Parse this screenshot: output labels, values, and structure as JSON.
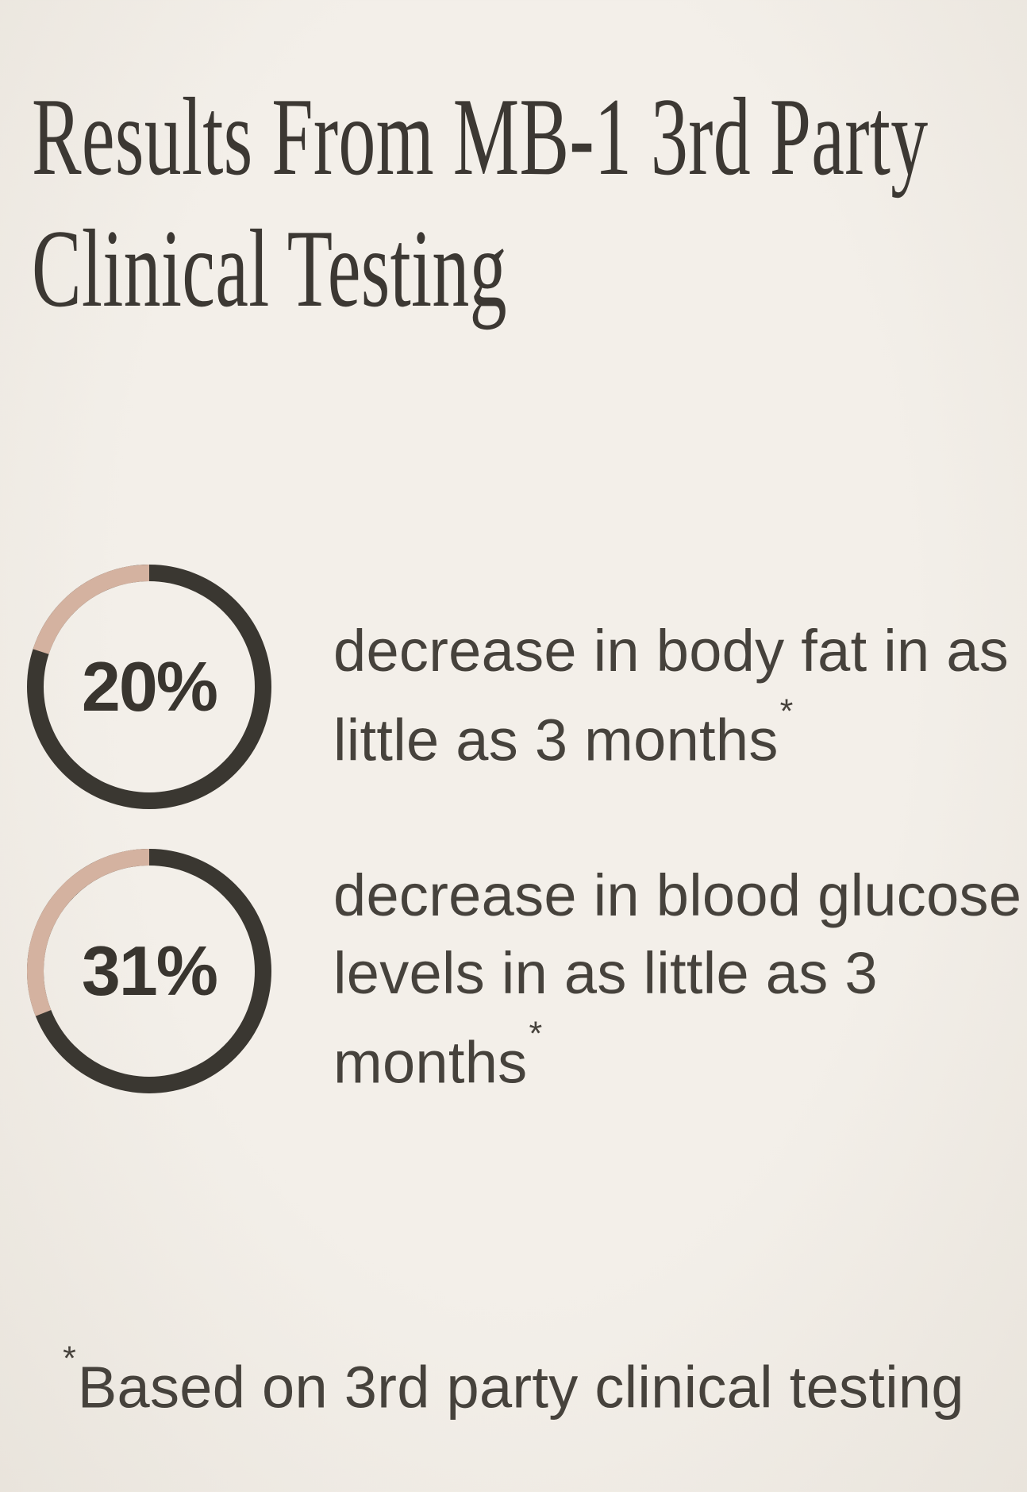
{
  "title": {
    "lines": [
      "Results From MB-1 3rd Party",
      "Clinical Testing"
    ]
  },
  "stats": [
    {
      "percent_label": "20%",
      "percent": 20,
      "description_lines": [
        "decrease in body fat in as",
        "little as 3 months"
      ],
      "footnote_marker": "*"
    },
    {
      "percent_label": "31%",
      "percent": 31,
      "description_lines": [
        "decrease in blood glucose",
        "levels in as little as 3",
        "months"
      ],
      "footnote_marker": "*"
    }
  ],
  "footnote": {
    "marker": "*",
    "text": "Based on 3rd party clinical testing"
  },
  "colors": {
    "background_center": "#f3efe9",
    "background_edge": "#e9e4dc",
    "ring_dark": "#3a3731",
    "ring_accent": "#d4b2a0",
    "title_color": "#3c3833",
    "text_color": "#46423c",
    "percent_color": "#39352f"
  },
  "chart_data": [
    {
      "type": "pie",
      "subtype": "donut-progress",
      "center_label": "20%",
      "values": [
        20,
        80
      ],
      "labels": [
        "decrease in body fat in as little as 3 months*",
        "remainder"
      ],
      "colors": [
        "#d4b2a0",
        "#3a3731"
      ],
      "start_angle": "12 o'clock",
      "direction": "counterclockwise",
      "title": "decrease in body fat in as little as 3 months*"
    },
    {
      "type": "pie",
      "subtype": "donut-progress",
      "center_label": "31%",
      "values": [
        31,
        69
      ],
      "labels": [
        "decrease in blood glucose levels in as little as 3 months*",
        "remainder"
      ],
      "colors": [
        "#d4b2a0",
        "#3a3731"
      ],
      "start_angle": "12 o'clock",
      "direction": "counterclockwise",
      "title": "decrease in blood glucose levels in as little as 3 months*"
    }
  ]
}
